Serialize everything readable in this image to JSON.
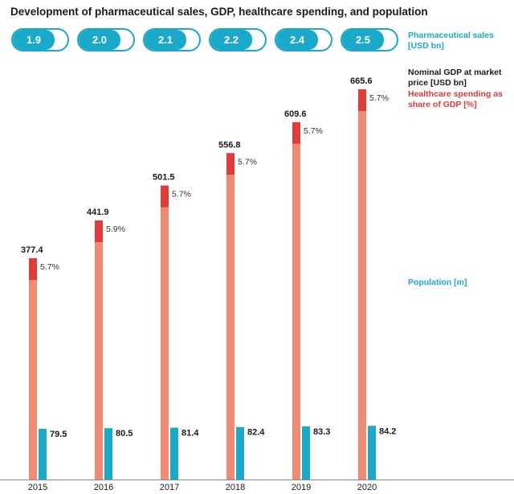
{
  "title": "Development of pharmaceutical sales, GDP, healthcare spending, and population",
  "legend": {
    "sales": "Pharmaceutical sales [USD bn]",
    "gdp": "Nominal GDP at market price [USD bn]",
    "healthcare": "Healthcare spending as share of GDP [%]",
    "population": "Population [m]"
  },
  "colors": {
    "gdp": "#ee8b72",
    "healthcare": "#e03a3a",
    "population": "#1aa9c9",
    "sales_pill": "#1aa9c9"
  },
  "chart_data": {
    "type": "bar",
    "categories": [
      "2015",
      "2016",
      "2017",
      "2018",
      "2019",
      "2020"
    ],
    "series": [
      {
        "name": "Pharmaceutical sales [USD bn]",
        "values": [
          1.9,
          2.0,
          2.1,
          2.2,
          2.4,
          2.5
        ],
        "labels": [
          "1.9",
          "2.0",
          "2.1",
          "2.2",
          "2.4",
          "2.5"
        ]
      },
      {
        "name": "Nominal GDP at market price [USD bn]",
        "values": [
          377.4,
          441.9,
          501.5,
          556.8,
          609.6,
          665.6
        ],
        "labels": [
          "377.4",
          "441.9",
          "501.5",
          "556.8",
          "609.6",
          "665.6"
        ]
      },
      {
        "name": "Healthcare spending as share of GDP [%]",
        "values": [
          5.7,
          5.9,
          5.7,
          5.7,
          5.7,
          5.7
        ],
        "labels": [
          "5.7%",
          "5.9%",
          "5.7%",
          "5.7%",
          "5.7%",
          "5.7%"
        ]
      },
      {
        "name": "Population [m]",
        "values": [
          79.5,
          80.5,
          81.4,
          82.4,
          83.3,
          84.2
        ],
        "labels": [
          "79.5",
          "80.5",
          "81.4",
          "82.4",
          "83.3",
          "84.2"
        ]
      }
    ]
  }
}
